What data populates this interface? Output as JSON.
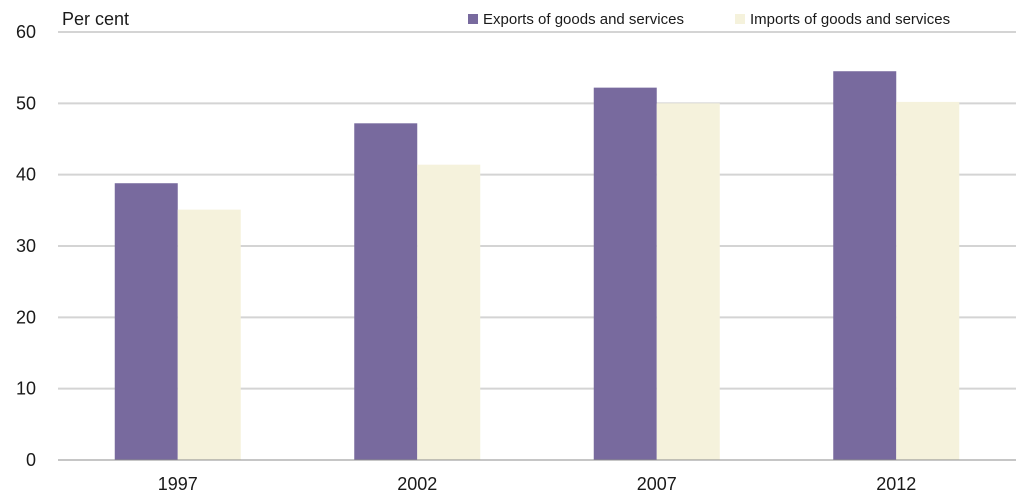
{
  "chart_data": {
    "type": "bar",
    "title": "",
    "xlabel": "",
    "ylabel": "Per cent",
    "categories": [
      "1997",
      "2002",
      "2007",
      "2012"
    ],
    "series": [
      {
        "name": "Exports of goods and services",
        "color": "#786a9e",
        "values": [
          38.8,
          47.2,
          52.2,
          54.5
        ]
      },
      {
        "name": "Imports of goods and services",
        "color": "#f5f2dc",
        "values": [
          35.1,
          41.4,
          50.0,
          50.2
        ]
      }
    ],
    "ylim": [
      0,
      60
    ],
    "yticks": [
      0,
      10,
      20,
      30,
      40,
      50,
      60
    ],
    "grid": true,
    "gridline_color": "#d4d4d4",
    "legend_position": "top-right"
  }
}
